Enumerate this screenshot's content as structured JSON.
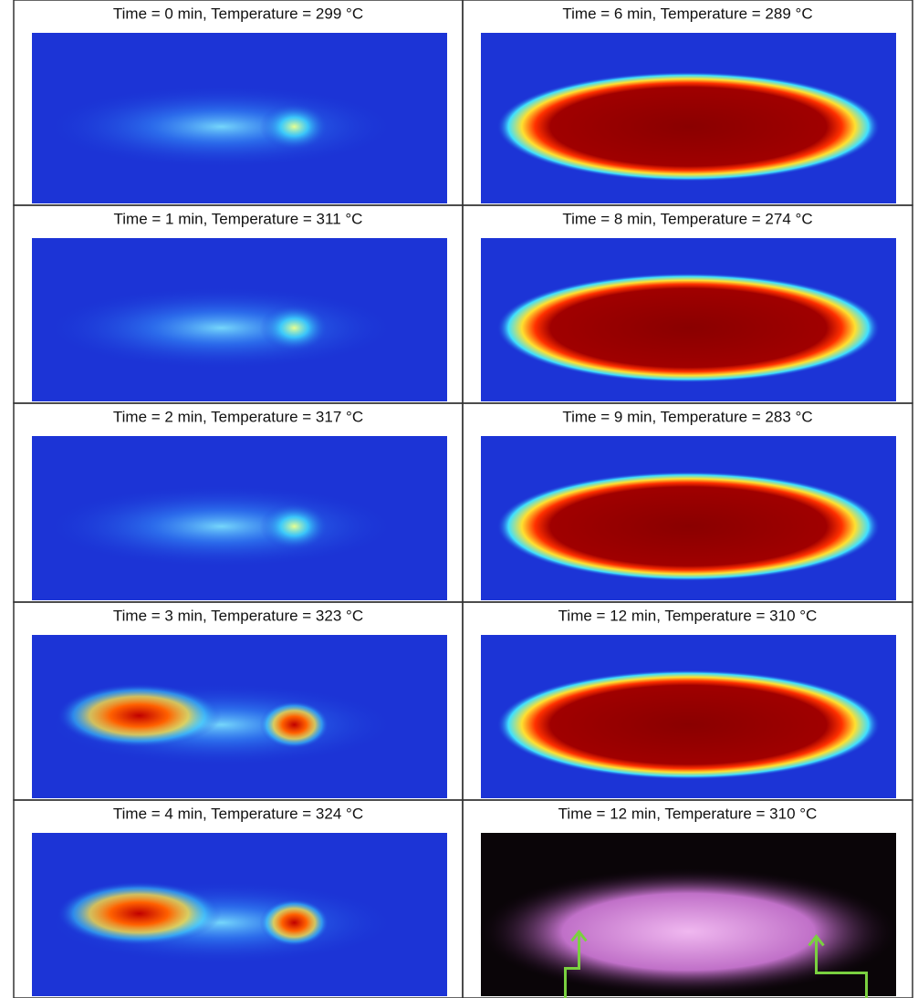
{
  "panels": [
    {
      "caption": "Time = 0 min, Temperature = 299 °C"
    },
    {
      "caption": "Time = 6 min, Temperature = 289 °C"
    },
    {
      "caption": "Time = 1 min, Temperature = 311 °C"
    },
    {
      "caption": "Time = 8 min, Temperature = 274 °C"
    },
    {
      "caption": "Time = 2 min, Temperature = 317 °C"
    },
    {
      "caption": "Time = 9 min, Temperature = 283 °C"
    },
    {
      "caption": "Time = 3 min, Temperature = 323 °C"
    },
    {
      "caption": "Time = 12 min, Temperature = 310 °C"
    },
    {
      "caption": "Time = 4 min, Temperature = 324 °C"
    },
    {
      "caption": "Time = 12 min, Temperature = 310 °C"
    }
  ]
}
